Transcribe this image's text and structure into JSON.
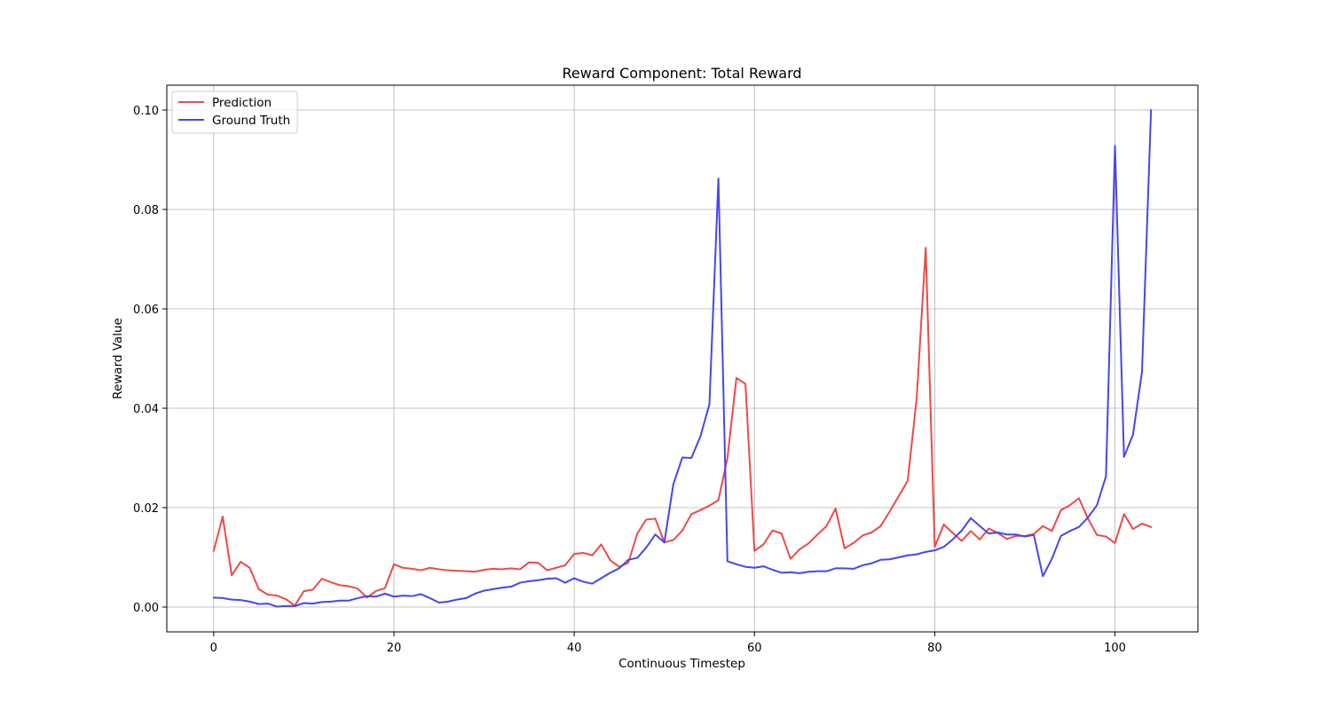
{
  "chart_data": {
    "type": "line",
    "title": "Reward Component: Total Reward",
    "xlabel": "Continuous Timestep",
    "ylabel": "Reward Value",
    "xlim": [
      -5.2,
      109.2
    ],
    "ylim": [
      -0.005,
      0.105
    ],
    "xticks": [
      0,
      20,
      40,
      60,
      80,
      100
    ],
    "yticks": [
      0.0,
      0.02,
      0.04,
      0.06,
      0.08,
      0.1
    ],
    "xtick_labels": [
      "0",
      "20",
      "40",
      "60",
      "80",
      "100"
    ],
    "ytick_labels": [
      "0.00",
      "0.02",
      "0.04",
      "0.06",
      "0.08",
      "0.10"
    ],
    "grid": true,
    "legend_position": "top-left",
    "series": [
      {
        "name": "Prediction",
        "color": "#f04848",
        "values": [
          0.0113,
          0.0182,
          0.0064,
          0.0091,
          0.0079,
          0.0036,
          0.0025,
          0.0023,
          0.0016,
          0.0003,
          0.0032,
          0.0035,
          0.0057,
          0.005,
          0.0044,
          0.0042,
          0.0037,
          0.0019,
          0.0032,
          0.0038,
          0.0086,
          0.0079,
          0.0077,
          0.0074,
          0.0079,
          0.0076,
          0.0074,
          0.0073,
          0.0072,
          0.0071,
          0.0075,
          0.0077,
          0.0076,
          0.0078,
          0.0076,
          0.009,
          0.0089,
          0.0074,
          0.0079,
          0.0084,
          0.0107,
          0.0109,
          0.0104,
          0.0126,
          0.0094,
          0.0081,
          0.0089,
          0.0148,
          0.0176,
          0.0178,
          0.013,
          0.0135,
          0.0154,
          0.0187,
          0.0195,
          0.0204,
          0.0215,
          0.03,
          0.0461,
          0.0449,
          0.0113,
          0.0126,
          0.0154,
          0.0148,
          0.0097,
          0.0116,
          0.0128,
          0.0146,
          0.0163,
          0.0198,
          0.0118,
          0.0129,
          0.0144,
          0.015,
          0.0163,
          0.0192,
          0.0223,
          0.0254,
          0.042,
          0.0723,
          0.0121,
          0.0166,
          0.0149,
          0.0133,
          0.0153,
          0.0136,
          0.0158,
          0.0149,
          0.0137,
          0.0143,
          0.0143,
          0.0147,
          0.0163,
          0.0153,
          0.0195,
          0.0205,
          0.0219,
          0.0178,
          0.0145,
          0.0142,
          0.0129,
          0.0187,
          0.0157,
          0.0168,
          0.0161
        ]
      },
      {
        "name": "Ground Truth",
        "color": "#4646ee",
        "values": [
          0.0019,
          0.0018,
          0.0015,
          0.0014,
          0.0011,
          0.0006,
          0.0007,
          0.0001,
          0.0002,
          0.0002,
          0.0008,
          0.0007,
          0.001,
          0.0011,
          0.0013,
          0.0013,
          0.0018,
          0.0022,
          0.0021,
          0.0027,
          0.0021,
          0.0023,
          0.0022,
          0.0026,
          0.0018,
          0.0009,
          0.0011,
          0.0015,
          0.0018,
          0.0027,
          0.0033,
          0.0036,
          0.0039,
          0.0041,
          0.0049,
          0.0052,
          0.0054,
          0.0057,
          0.0058,
          0.0049,
          0.0058,
          0.0051,
          0.0047,
          0.0058,
          0.0069,
          0.0078,
          0.0095,
          0.0099,
          0.012,
          0.0146,
          0.013,
          0.0247,
          0.0301,
          0.03,
          0.0343,
          0.0408,
          0.0862,
          0.0092,
          0.0086,
          0.0081,
          0.0079,
          0.0082,
          0.0075,
          0.0069,
          0.007,
          0.0068,
          0.0071,
          0.0072,
          0.0072,
          0.0078,
          0.0078,
          0.0077,
          0.0084,
          0.0088,
          0.0095,
          0.0096,
          0.01,
          0.0104,
          0.0106,
          0.0111,
          0.0114,
          0.0121,
          0.0136,
          0.0154,
          0.0179,
          0.0163,
          0.0148,
          0.015,
          0.0146,
          0.0146,
          0.0142,
          0.0145,
          0.0062,
          0.0097,
          0.0143,
          0.0153,
          0.0161,
          0.018,
          0.0205,
          0.0263,
          0.0928,
          0.0302,
          0.0347,
          0.0474,
          0.1
        ]
      }
    ]
  }
}
